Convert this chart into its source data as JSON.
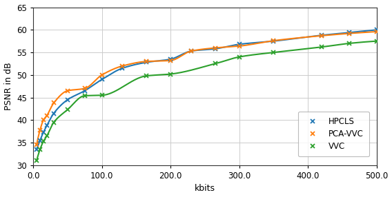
{
  "title": "",
  "xlabel": "kbits",
  "ylabel": "PSNR in dB",
  "xlim": [
    0,
    500
  ],
  "ylim": [
    30,
    65
  ],
  "xticks": [
    0.0,
    100.0,
    200.0,
    300.0,
    400.0,
    500.0
  ],
  "yticks": [
    30,
    35,
    40,
    45,
    50,
    55,
    60,
    65
  ],
  "HPCLS": {
    "x": [
      5,
      10,
      15,
      20,
      30,
      50,
      75,
      100,
      130,
      165,
      200,
      230,
      265,
      300,
      350,
      420,
      460,
      500
    ],
    "y": [
      33.5,
      35.5,
      37.5,
      38.8,
      41.5,
      44.5,
      46.5,
      49.0,
      51.5,
      52.8,
      53.5,
      55.3,
      55.8,
      56.8,
      57.5,
      58.8,
      59.4,
      60.0
    ],
    "color": "#1f77b4",
    "label": "HPCLS"
  },
  "PCA_VVC": {
    "x": [
      5,
      10,
      15,
      20,
      30,
      50,
      75,
      100,
      130,
      165,
      200,
      230,
      265,
      300,
      350,
      420,
      460,
      500
    ],
    "y": [
      34.5,
      37.5,
      40.0,
      41.0,
      43.8,
      46.5,
      47.0,
      50.0,
      52.0,
      53.0,
      53.2,
      55.3,
      56.0,
      56.4,
      57.6,
      58.7,
      59.2,
      59.6
    ],
    "color": "#ff7f0e",
    "label": "PCA-VVC"
  },
  "VVC": {
    "x": [
      5,
      10,
      15,
      20,
      30,
      50,
      75,
      100,
      130,
      165,
      200,
      265,
      300,
      350,
      420,
      460,
      500
    ],
    "y": [
      31.0,
      33.5,
      35.5,
      36.5,
      39.5,
      42.3,
      45.5,
      45.5,
      49.0,
      49.8,
      50.2,
      52.5,
      54.0,
      55.0,
      56.2,
      57.0,
      57.5
    ],
    "color": "#2ca02c",
    "label": "VVC"
  },
  "background_color": "#ffffff",
  "grid_color": "#cccccc",
  "linewidth": 1.5,
  "markersize": 5
}
